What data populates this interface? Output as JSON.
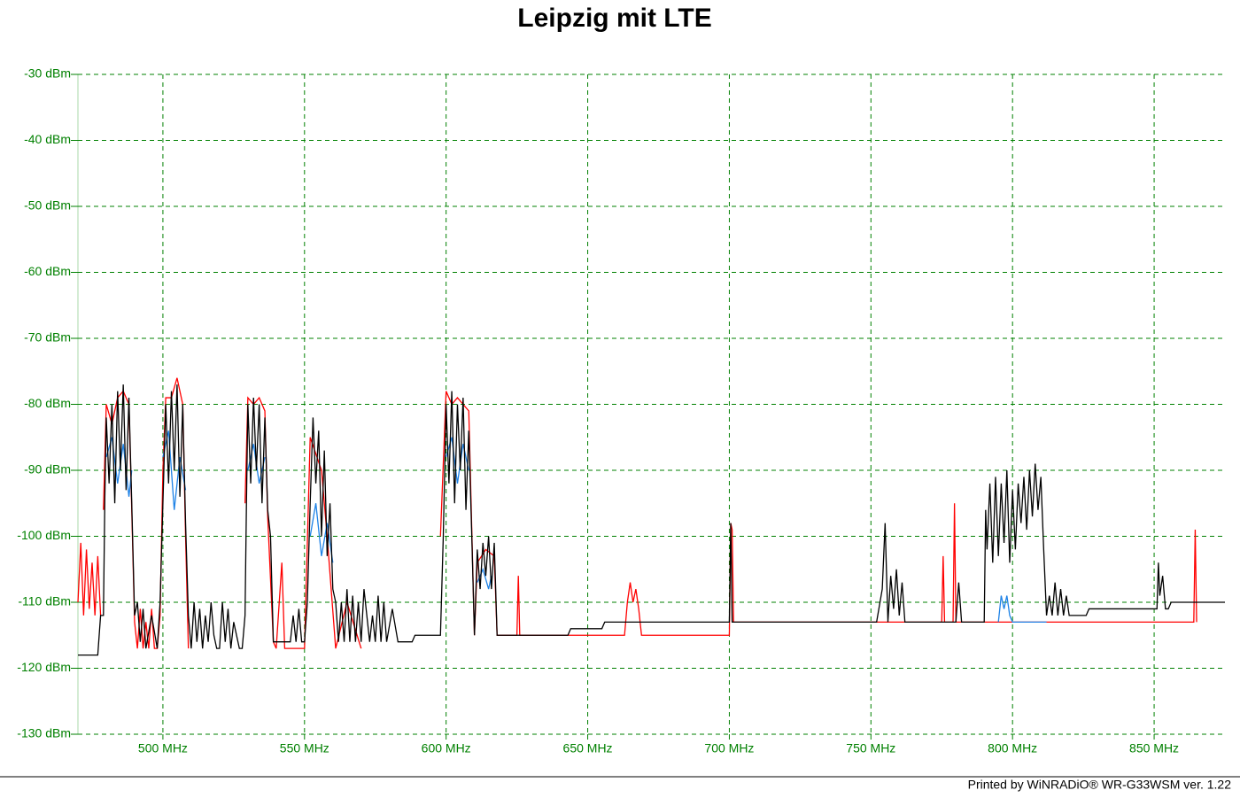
{
  "chart_data": {
    "type": "line",
    "title": "Leipzig mit LTE",
    "footer": "Printed by WiNRADiO®  WR-G33WSM ver. 1.22",
    "xlim": [
      470,
      875
    ],
    "ylim": [
      -130,
      -30
    ],
    "xticks": [
      {
        "value": 500,
        "label": "500 MHz"
      },
      {
        "value": 550,
        "label": "550 MHz"
      },
      {
        "value": 600,
        "label": "600 MHz"
      },
      {
        "value": 650,
        "label": "650 MHz"
      },
      {
        "value": 700,
        "label": "700 MHz"
      },
      {
        "value": 750,
        "label": "750 MHz"
      },
      {
        "value": 800,
        "label": "800 MHz"
      },
      {
        "value": 850,
        "label": "850 MHz"
      }
    ],
    "yticks": [
      {
        "value": -30,
        "label": "-30 dBm"
      },
      {
        "value": -40,
        "label": "-40 dBm"
      },
      {
        "value": -50,
        "label": "-50 dBm"
      },
      {
        "value": -60,
        "label": "-60 dBm"
      },
      {
        "value": -70,
        "label": "-70 dBm"
      },
      {
        "value": -80,
        "label": "-80 dBm"
      },
      {
        "value": -90,
        "label": "-90 dBm"
      },
      {
        "value": -100,
        "label": "-100 dBm"
      },
      {
        "value": -110,
        "label": "-110 dBm"
      },
      {
        "value": -120,
        "label": "-120 dBm"
      },
      {
        "value": -130,
        "label": "-130 dBm"
      }
    ],
    "grid": true,
    "grid_color": "#008000",
    "series": [
      {
        "color": "#ff0000",
        "x": [
          470,
          471,
          472,
          473,
          474,
          475,
          476,
          477,
          478,
          478,
          479,
          480,
          482,
          484,
          486,
          488,
          489,
          490,
          491,
          492,
          493,
          494,
          495,
          496,
          497,
          498,
          499,
          500,
          501,
          503,
          505,
          507,
          508,
          509,
          509,
          529,
          530,
          532,
          534,
          536,
          537,
          539,
          540,
          542,
          543,
          550,
          552,
          556,
          558,
          561,
          565,
          570,
          570,
          598,
          600,
          602,
          604,
          606,
          608,
          610,
          611,
          614,
          617,
          618,
          625,
          625.5,
          626,
          640,
          663,
          664,
          665,
          666,
          667,
          668,
          669,
          700,
          700.5,
          701,
          701.5,
          775,
          775.5,
          776,
          779,
          779.5,
          780,
          864,
          864.5,
          865
        ],
        "values": [
          -110,
          -101,
          -112,
          -102,
          -111,
          -104,
          -112,
          -103,
          -112,
          null,
          -96,
          -80,
          -83,
          -79,
          -78,
          -80,
          -96,
          -113,
          -117,
          -111,
          -117,
          -113,
          -117,
          -111,
          -117,
          -117,
          -112,
          -90,
          -79,
          -79,
          -76,
          -80,
          -100,
          -117,
          null,
          -95,
          -79,
          -80,
          -79,
          -81,
          -97,
          -116,
          -117,
          -104,
          -117,
          -117,
          -85,
          -90,
          -100,
          -117,
          -110,
          -117,
          null,
          -100,
          -78,
          -80,
          -79,
          -80,
          -81,
          -115,
          -104,
          -102,
          -103,
          -115,
          -115,
          -106,
          -115,
          -115,
          -115,
          -110,
          -107,
          -110,
          -108,
          -111,
          -115,
          -115,
          -98,
          -99,
          -113,
          -113,
          -103,
          -113,
          -113,
          -95,
          -113,
          -113,
          -99,
          -113
        ]
      },
      {
        "color": "#1e82e6",
        "x": [
          480,
          482,
          484,
          486,
          488,
          489,
          489,
          500,
          502,
          504,
          506,
          508,
          508,
          530,
          532,
          534,
          536,
          536,
          552,
          554,
          556,
          558,
          560,
          560,
          600,
          602,
          604,
          606,
          608,
          608,
          611,
          613,
          615,
          616,
          616,
          795,
          796,
          797,
          798,
          799,
          800,
          812
        ],
        "values": [
          -88,
          -85,
          -92,
          -86,
          -94,
          -90,
          null,
          -88,
          -84,
          -96,
          -88,
          -93,
          null,
          -90,
          -86,
          -92,
          -88,
          null,
          -100,
          -95,
          -103,
          -98,
          -104,
          null,
          -88,
          -85,
          -92,
          -86,
          -90,
          null,
          -107,
          -105,
          -108,
          -106,
          null,
          -113,
          -109,
          -111,
          -109,
          -112,
          -113,
          -113
        ]
      },
      {
        "color": "#000000",
        "x": [
          470,
          477,
          478,
          479,
          479.5,
          480,
          481,
          482,
          483,
          484,
          485,
          486,
          487,
          488,
          489,
          490,
          491,
          492,
          493,
          494,
          496,
          498,
          499,
          500,
          501,
          502,
          503,
          504,
          505,
          506,
          507,
          508,
          509,
          510,
          511,
          512,
          513,
          514,
          515,
          516,
          517,
          518,
          519,
          520,
          521,
          522,
          523,
          524,
          525,
          527,
          528,
          529,
          529.5,
          530,
          531,
          532,
          533,
          534,
          535,
          536,
          537,
          538,
          539,
          545,
          546,
          547,
          548,
          549,
          550,
          551,
          552,
          553,
          554,
          555,
          556,
          557,
          558,
          559,
          560,
          561,
          562,
          563,
          564,
          565,
          566,
          567,
          568,
          569,
          570,
          571,
          573,
          574,
          575,
          576,
          577,
          578,
          579,
          581,
          583,
          588,
          589,
          598,
          599,
          600,
          601,
          602,
          603,
          604,
          605,
          606,
          607,
          608,
          609,
          610,
          611,
          612,
          613,
          614,
          615,
          616,
          617,
          618,
          622,
          643,
          644,
          655,
          656,
          660,
          700,
          700.5,
          701,
          750,
          752,
          754,
          755,
          756,
          757,
          758,
          759,
          760,
          761,
          762,
          780,
          781,
          782,
          790,
          790.5,
          791,
          792,
          793,
          794,
          795,
          796,
          797,
          798,
          799,
          800,
          801,
          802,
          803,
          804,
          805,
          806,
          807,
          808,
          809,
          810,
          811,
          812,
          813,
          814,
          815,
          816,
          817,
          818,
          819,
          820,
          826,
          827,
          851,
          851.5,
          852,
          853,
          854,
          855,
          856,
          875
        ],
        "values": [
          -118,
          -118,
          -112,
          -112,
          -94,
          -82,
          -92,
          -80,
          -95,
          -78,
          -90,
          -77,
          -93,
          -79,
          -95,
          -112,
          -110,
          -116,
          -111,
          -117,
          -112,
          -117,
          -110,
          -95,
          -80,
          -92,
          -78,
          -90,
          -77,
          -94,
          -80,
          -98,
          -112,
          -117,
          -110,
          -116,
          -111,
          -117,
          -112,
          -116,
          -110,
          -115,
          -117,
          -117,
          -110,
          -116,
          -111,
          -117,
          -113,
          -117,
          -117,
          -112,
          -95,
          -80,
          -92,
          -79,
          -90,
          -80,
          -95,
          -82,
          -96,
          -100,
          -116,
          -116,
          -112,
          -116,
          -111,
          -116,
          -116,
          -110,
          -95,
          -82,
          -92,
          -84,
          -100,
          -87,
          -103,
          -95,
          -108,
          -110,
          -116,
          -110,
          -116,
          -108,
          -116,
          -109,
          -116,
          -110,
          -116,
          -108,
          -116,
          -112,
          -116,
          -109,
          -116,
          -110,
          -116,
          -111,
          -116,
          -116,
          -115,
          -115,
          -100,
          -80,
          -92,
          -78,
          -95,
          -80,
          -90,
          -79,
          -96,
          -84,
          -99,
          -115,
          -102,
          -108,
          -101,
          -106,
          -100,
          -108,
          -101,
          -115,
          -115,
          -115,
          -114,
          -114,
          -113,
          -113,
          -113,
          -98,
          -113,
          -113,
          -113,
          -108,
          -98,
          -113,
          -106,
          -111,
          -105,
          -112,
          -107,
          -113,
          -113,
          -107,
          -113,
          -113,
          -96,
          -102,
          -92,
          -104,
          -91,
          -103,
          -92,
          -101,
          -90,
          -104,
          -93,
          -102,
          -92,
          -98,
          -91,
          -99,
          -90,
          -97,
          -89,
          -96,
          -91,
          -102,
          -112,
          -109,
          -112,
          -107,
          -112,
          -108,
          -112,
          -109,
          -112,
          -112,
          -111,
          -111,
          -104,
          -109,
          -106,
          -111,
          -111,
          -110,
          -110
        ]
      }
    ]
  }
}
